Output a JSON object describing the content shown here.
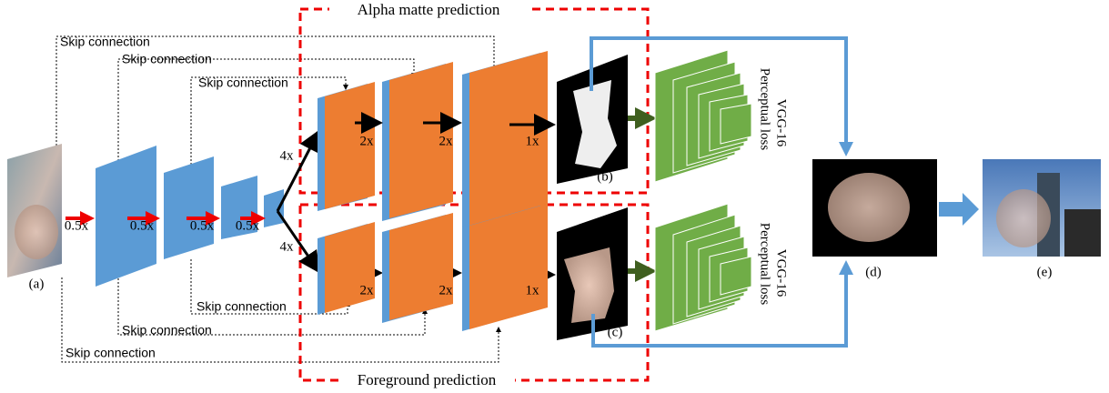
{
  "title_boxes": {
    "alpha": "Alpha matte prediction",
    "foreground": "Foreground prediction"
  },
  "skip_connections": [
    "Skip connection",
    "Skip connection",
    "Skip connection",
    "Skip connection",
    "Skip connection",
    "Skip connection"
  ],
  "downsample_labels": [
    "0.5x",
    "0.5x",
    "0.5x",
    "0.5x"
  ],
  "upsample_labels": [
    "4x",
    "4x"
  ],
  "decoder_scales": {
    "alpha": [
      "2x",
      "2x",
      "1x"
    ],
    "foreground": [
      "2x",
      "2x",
      "1x"
    ]
  },
  "losses": [
    {
      "network": "VGG-16",
      "label": "Perceptual loss"
    },
    {
      "network": "VGG-16",
      "label": "Perceptual loss"
    }
  ],
  "panels": [
    "(a)",
    "(b)",
    "(c)",
    "(d)",
    "(e)"
  ]
}
